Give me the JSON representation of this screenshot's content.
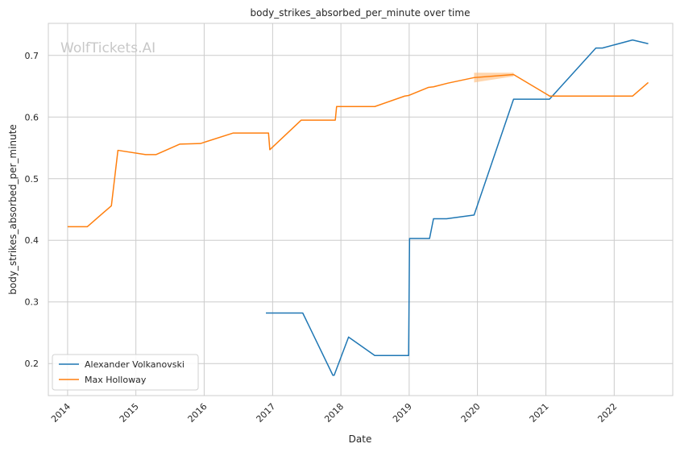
{
  "watermark": "WolfTickets.AI",
  "chart_data": {
    "type": "line",
    "title": "body_strikes_absorbed_per_minute over time",
    "xlabel": "Date",
    "ylabel": "body_strikes_absorbed_per_minute",
    "xlim": [
      "2013-09-20",
      "2022-11-10"
    ],
    "ylim": [
      0.148,
      0.752
    ],
    "xticks": [
      "2014-01-01",
      "2015-01-01",
      "2016-01-01",
      "2017-01-01",
      "2018-01-01",
      "2019-01-01",
      "2020-01-01",
      "2021-01-01",
      "2022-01-01"
    ],
    "xtick_labels": [
      "2014",
      "2015",
      "2016",
      "2017",
      "2018",
      "2019",
      "2020",
      "2021",
      "2022"
    ],
    "yticks": [
      0.2,
      0.3,
      0.4,
      0.5,
      0.6,
      0.7
    ],
    "ytick_labels": [
      "0.2",
      "0.3",
      "0.4",
      "0.5",
      "0.6",
      "0.7"
    ],
    "grid": true,
    "legend_position": "lower-left",
    "colors": {
      "Alexander Volkanovski": "#1f77b4",
      "Max Holloway": "#ff7f0e",
      "band": "#ffbb78"
    },
    "series": [
      {
        "name": "Alexander Volkanovski",
        "x": [
          "2016-11-26",
          "2017-06-11",
          "2017-11-19",
          "2017-11-26",
          "2018-02-11",
          "2018-07-01",
          "2018-12-29",
          "2019-01-03",
          "2019-04-20",
          "2019-05-11",
          "2019-07-20",
          "2019-12-14",
          "2020-07-12",
          "2021-01-20",
          "2021-09-25",
          "2021-10-30",
          "2022-04-09",
          "2022-07-02"
        ],
        "y": [
          0.282,
          0.282,
          0.181,
          0.181,
          0.243,
          0.213,
          0.213,
          0.403,
          0.403,
          0.435,
          0.435,
          0.441,
          0.629,
          0.629,
          0.712,
          0.712,
          0.725,
          0.719
        ]
      },
      {
        "name": "Max Holloway",
        "x": [
          "2014-01-01",
          "2014-04-16",
          "2014-08-23",
          "2014-09-27",
          "2015-02-22",
          "2015-04-18",
          "2015-08-23",
          "2015-12-12",
          "2016-06-03",
          "2016-12-10",
          "2016-12-17",
          "2017-06-03",
          "2017-12-02",
          "2017-12-09",
          "2018-07-01",
          "2018-12-08",
          "2018-12-29",
          "2019-04-13",
          "2019-05-11",
          "2019-07-27",
          "2019-12-14",
          "2020-07-12",
          "2021-01-16",
          "2021-01-20",
          "2021-10-30",
          "2022-04-09",
          "2022-07-02"
        ],
        "y": [
          0.422,
          0.422,
          0.456,
          0.546,
          0.539,
          0.539,
          0.556,
          0.557,
          0.574,
          0.574,
          0.547,
          0.595,
          0.595,
          0.617,
          0.617,
          0.634,
          0.635,
          0.648,
          0.649,
          0.655,
          0.664,
          0.669,
          0.635,
          0.634,
          0.634,
          0.634,
          0.656
        ]
      }
    ],
    "bands": [
      {
        "series": "Max Holloway",
        "x": [
          "2019-12-14",
          "2020-07-12"
        ],
        "lower": [
          0.656,
          0.666
        ],
        "upper": [
          0.672,
          0.672
        ]
      }
    ]
  }
}
